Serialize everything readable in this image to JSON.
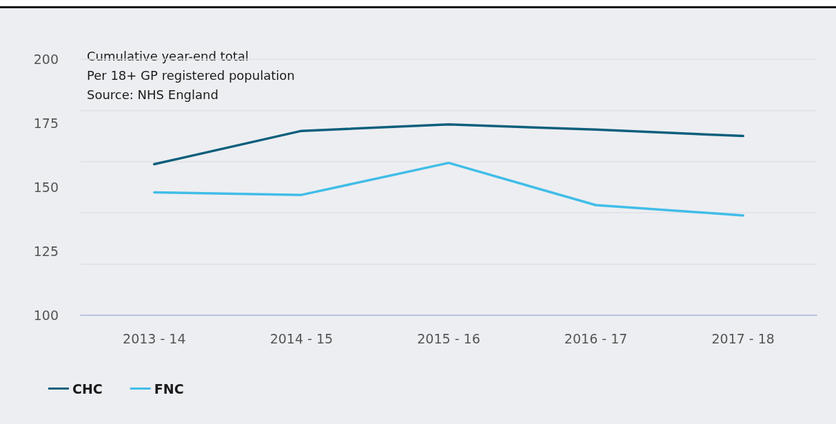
{
  "chart_data": {
    "type": "line",
    "categories": [
      "2013 - 14",
      "2014 - 15",
      "2015 - 16",
      "2016 - 17",
      "2017 - 18"
    ],
    "series": [
      {
        "name": "CHC",
        "color": "#0b5f7c",
        "values": [
          159,
          172,
          174.5,
          172.5,
          170
        ]
      },
      {
        "name": "FNC",
        "color": "#40bde8",
        "values": [
          148,
          147,
          159.5,
          143,
          139
        ]
      }
    ],
    "ylim": [
      100,
      200
    ],
    "yticks": [
      100,
      125,
      150,
      175,
      200
    ],
    "grid": "y",
    "legend": "bottom left",
    "marker": "none",
    "line_style": "solid",
    "annotations": [
      "Cumulative year-end total",
      "Per 18+ GP registered population",
      "Source: NHS England"
    ]
  }
}
